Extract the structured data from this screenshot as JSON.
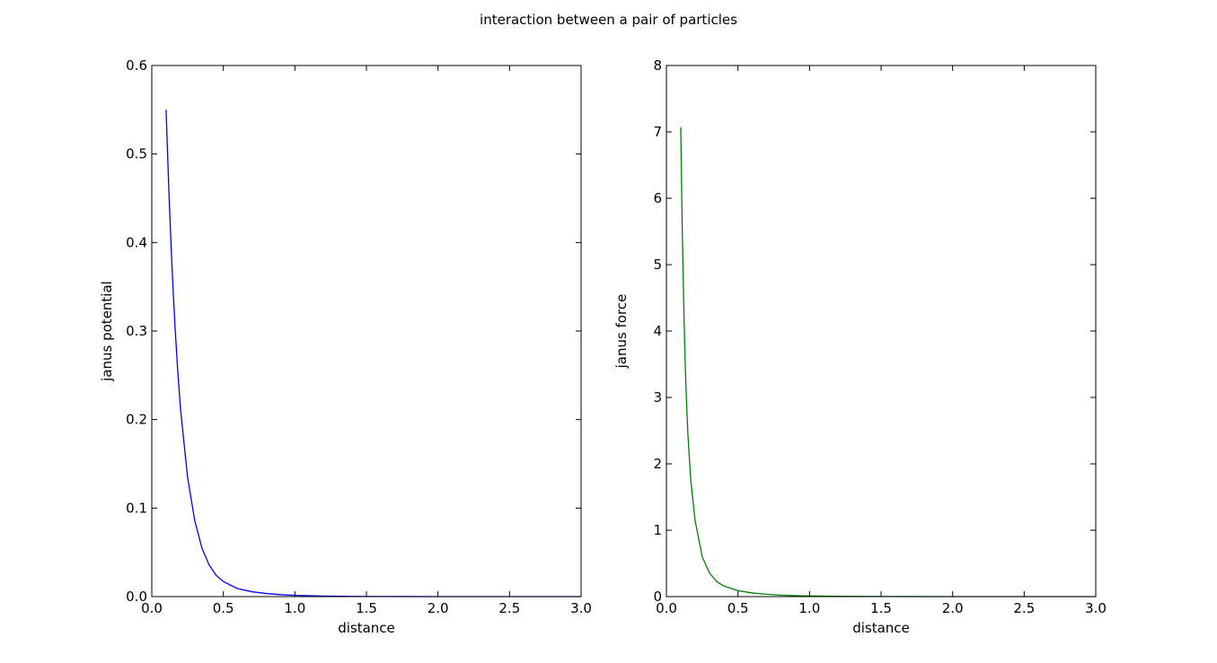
{
  "figure": {
    "title": "interaction between a pair of particles"
  },
  "chart_data": [
    {
      "type": "line",
      "title": "",
      "xlabel": "distance",
      "ylabel": "janus potential",
      "xlim": [
        0.0,
        3.0
      ],
      "ylim": [
        0.0,
        0.6
      ],
      "xticks": [
        "0.0",
        "0.5",
        "1.0",
        "1.5",
        "2.0",
        "2.5",
        "3.0"
      ],
      "yticks": [
        "0.0",
        "0.1",
        "0.2",
        "0.3",
        "0.4",
        "0.5",
        "0.6"
      ],
      "grid": false,
      "series": [
        {
          "color": "#0000ff",
          "x": [
            0.1,
            0.12,
            0.14,
            0.16,
            0.18,
            0.2,
            0.25,
            0.3,
            0.35,
            0.4,
            0.45,
            0.5,
            0.6,
            0.7,
            0.8,
            0.9,
            1.0,
            1.2,
            1.4,
            1.6,
            1.8,
            2.0,
            2.5,
            3.0
          ],
          "y": [
            0.55,
            0.455,
            0.377,
            0.312,
            0.258,
            0.213,
            0.135,
            0.086,
            0.055,
            0.036,
            0.024,
            0.017,
            0.009,
            0.0055,
            0.0035,
            0.0022,
            0.0014,
            0.0006,
            0.00025,
            0.0001,
            5e-05,
            2e-05,
            0.0,
            0.0
          ]
        }
      ]
    },
    {
      "type": "line",
      "title": "",
      "xlabel": "distance",
      "ylabel": "janus force",
      "xlim": [
        0.0,
        3.0
      ],
      "ylim": [
        0,
        8
      ],
      "xticks": [
        "0.0",
        "0.5",
        "1.0",
        "1.5",
        "2.0",
        "2.5",
        "3.0"
      ],
      "yticks": [
        "0",
        "1",
        "2",
        "3",
        "4",
        "5",
        "6",
        "7",
        "8"
      ],
      "grid": false,
      "series": [
        {
          "color": "#008000",
          "x": [
            0.1,
            0.11,
            0.12,
            0.13,
            0.14,
            0.15,
            0.17,
            0.2,
            0.25,
            0.3,
            0.35,
            0.4,
            0.5,
            0.6,
            0.7,
            0.8,
            0.9,
            1.0,
            1.2,
            1.5,
            2.0,
            2.5,
            3.0
          ],
          "y": [
            7.07,
            5.6,
            4.5,
            3.6,
            2.95,
            2.45,
            1.75,
            1.15,
            0.6,
            0.36,
            0.23,
            0.16,
            0.09,
            0.055,
            0.035,
            0.022,
            0.014,
            0.009,
            0.004,
            0.0015,
            0.0003,
            0.0,
            0.0
          ]
        }
      ]
    }
  ]
}
